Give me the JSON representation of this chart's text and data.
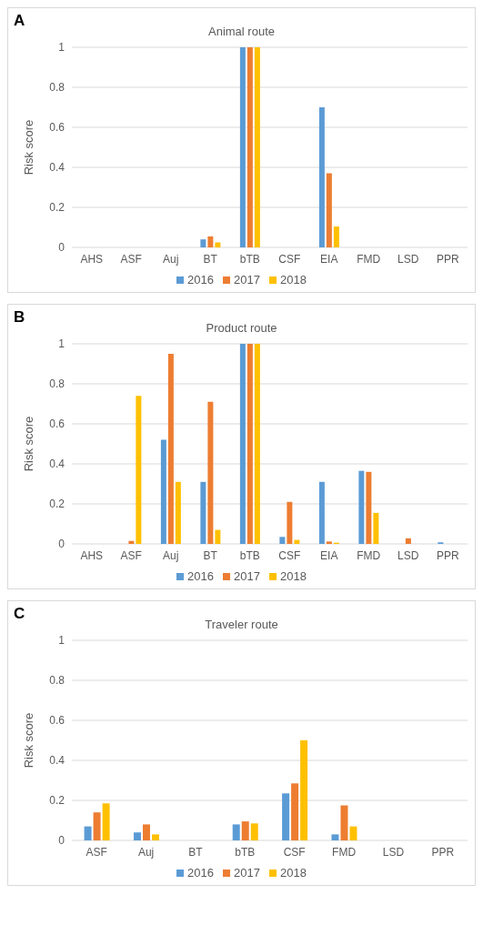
{
  "chart_data": [
    {
      "type": "bar",
      "title": "Animal route",
      "ylabel": "Risk score",
      "annotations": [
        "A"
      ],
      "categories": [
        "AHS",
        "ASF",
        "Auj",
        "BT",
        "bTB",
        "CSF",
        "EIA",
        "FMD",
        "LSD",
        "PPR"
      ],
      "series": [
        {
          "name": "2016",
          "color": "#5b9bd5",
          "values": [
            0,
            0,
            0,
            0.04,
            1,
            0,
            0.7,
            0,
            0,
            0
          ]
        },
        {
          "name": "2017",
          "color": "#ed7d31",
          "values": [
            0,
            0,
            0,
            0.055,
            1,
            0,
            0.37,
            0,
            0,
            0
          ]
        },
        {
          "name": "2018",
          "color": "#ffc000",
          "values": [
            0,
            0,
            0,
            0.025,
            1,
            0,
            0.105,
            0,
            0,
            0
          ]
        }
      ],
      "ylim": [
        0,
        1
      ],
      "yticks": [
        0,
        0.2,
        0.4,
        0.6,
        0.8,
        1
      ],
      "grid": "y",
      "legend": "bottom"
    },
    {
      "type": "bar",
      "title": "Product route",
      "ylabel": "Risk score",
      "annotations": [
        "B"
      ],
      "categories": [
        "AHS",
        "ASF",
        "Auj",
        "BT",
        "bTB",
        "CSF",
        "EIA",
        "FMD",
        "LSD",
        "PPR"
      ],
      "series": [
        {
          "name": "2016",
          "color": "#5b9bd5",
          "values": [
            0,
            0,
            0.52,
            0.31,
            1,
            0.035,
            0.31,
            0.365,
            0,
            0.008
          ]
        },
        {
          "name": "2017",
          "color": "#ed7d31",
          "values": [
            0,
            0.015,
            0.95,
            0.71,
            1,
            0.21,
            0.012,
            0.36,
            0.028,
            0
          ]
        },
        {
          "name": "2018",
          "color": "#ffc000",
          "values": [
            0,
            0.74,
            0.31,
            0.07,
            1,
            0.02,
            0.006,
            0.155,
            0,
            0
          ]
        }
      ],
      "ylim": [
        0,
        1
      ],
      "yticks": [
        0,
        0.2,
        0.4,
        0.6,
        0.8,
        1
      ],
      "grid": "y",
      "legend": "bottom"
    },
    {
      "type": "bar",
      "title": "Traveler route",
      "ylabel": "Risk score",
      "annotations": [
        "C"
      ],
      "categories": [
        "ASF",
        "Auj",
        "BT",
        "bTB",
        "CSF",
        "FMD",
        "LSD",
        "PPR"
      ],
      "series": [
        {
          "name": "2016",
          "color": "#5b9bd5",
          "values": [
            0.07,
            0.04,
            0,
            0.08,
            0.235,
            0.03,
            0,
            0
          ]
        },
        {
          "name": "2017",
          "color": "#ed7d31",
          "values": [
            0.14,
            0.08,
            0,
            0.095,
            0.285,
            0.175,
            0,
            0
          ]
        },
        {
          "name": "2018",
          "color": "#ffc000",
          "values": [
            0.185,
            0.03,
            0,
            0.085,
            0.5,
            0.07,
            0,
            0
          ]
        }
      ],
      "ylim": [
        0,
        1
      ],
      "yticks": [
        0,
        0.2,
        0.4,
        0.6,
        0.8,
        1
      ],
      "grid": "y",
      "legend": "bottom"
    }
  ]
}
